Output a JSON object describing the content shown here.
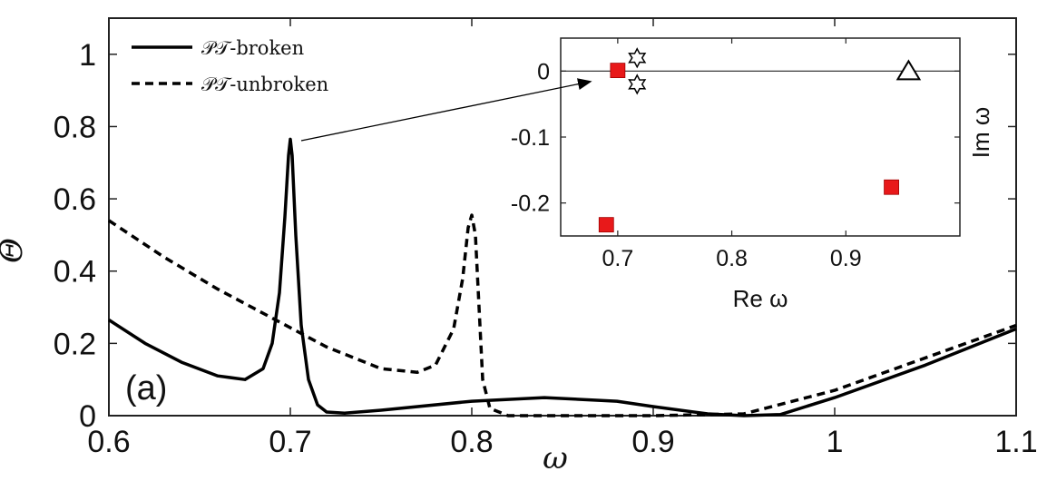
{
  "chart_data": [
    {
      "type": "line",
      "panel_label": "(a)",
      "xlabel": "ω",
      "ylabel": "Θ",
      "xlim": [
        0.6,
        1.1
      ],
      "ylim": [
        0,
        1.1
      ],
      "x_ticks": [
        "0.6",
        "0.7",
        "0.8",
        "0.9",
        "1",
        "1.1"
      ],
      "y_ticks": [
        "0",
        "0.2",
        "0.4",
        "0.6",
        "0.8",
        "1"
      ],
      "legend_position": "top-left",
      "series": [
        {
          "name": "𝒫𝒯-broken",
          "style": "solid",
          "x": [
            0.6,
            0.62,
            0.64,
            0.66,
            0.675,
            0.685,
            0.69,
            0.694,
            0.697,
            0.699,
            0.7,
            0.701,
            0.703,
            0.706,
            0.71,
            0.715,
            0.72,
            0.73,
            0.75,
            0.8,
            0.84,
            0.88,
            0.9,
            0.93,
            0.95,
            0.97,
            1.0,
            1.05,
            1.1
          ],
          "y": [
            0.265,
            0.2,
            0.148,
            0.11,
            0.1,
            0.13,
            0.2,
            0.34,
            0.55,
            0.72,
            0.765,
            0.72,
            0.5,
            0.25,
            0.1,
            0.03,
            0.01,
            0.007,
            0.015,
            0.04,
            0.05,
            0.04,
            0.025,
            0.005,
            0.0,
            0.003,
            0.05,
            0.14,
            0.24
          ]
        },
        {
          "name": "𝒫𝒯-unbroken",
          "style": "dashed",
          "x": [
            0.6,
            0.63,
            0.66,
            0.69,
            0.72,
            0.75,
            0.77,
            0.78,
            0.79,
            0.795,
            0.798,
            0.8,
            0.802,
            0.804,
            0.806,
            0.81,
            0.82,
            0.9,
            0.95,
            1.0,
            1.05,
            1.1
          ],
          "y": [
            0.54,
            0.44,
            0.35,
            0.27,
            0.19,
            0.13,
            0.12,
            0.14,
            0.24,
            0.38,
            0.52,
            0.555,
            0.5,
            0.3,
            0.1,
            0.02,
            0.0,
            0.0,
            0.005,
            0.07,
            0.16,
            0.25
          ]
        }
      ]
    },
    {
      "type": "scatter",
      "xlabel": "Re ω",
      "ylabel": "Im ω",
      "xlim": [
        0.65,
        1.0
      ],
      "ylim": [
        -0.25,
        0.05
      ],
      "x_ticks": [
        "0.7",
        "0.8",
        "0.9"
      ],
      "y_ticks": [
        "0",
        "-0.1",
        "-0.2"
      ],
      "reference_line_y": 0,
      "series": [
        {
          "marker": "square",
          "color": "#e8191a",
          "points": [
            [
              0.7,
              0.001
            ],
            [
              0.69,
              -0.233
            ],
            [
              0.94,
              -0.176
            ]
          ]
        },
        {
          "marker": "star",
          "color": "#000000",
          "points": [
            [
              0.717,
              0.02
            ],
            [
              0.717,
              -0.02
            ]
          ]
        },
        {
          "marker": "triangle",
          "color": "#000000",
          "points": [
            [
              0.955,
              0.0
            ]
          ]
        }
      ]
    }
  ]
}
